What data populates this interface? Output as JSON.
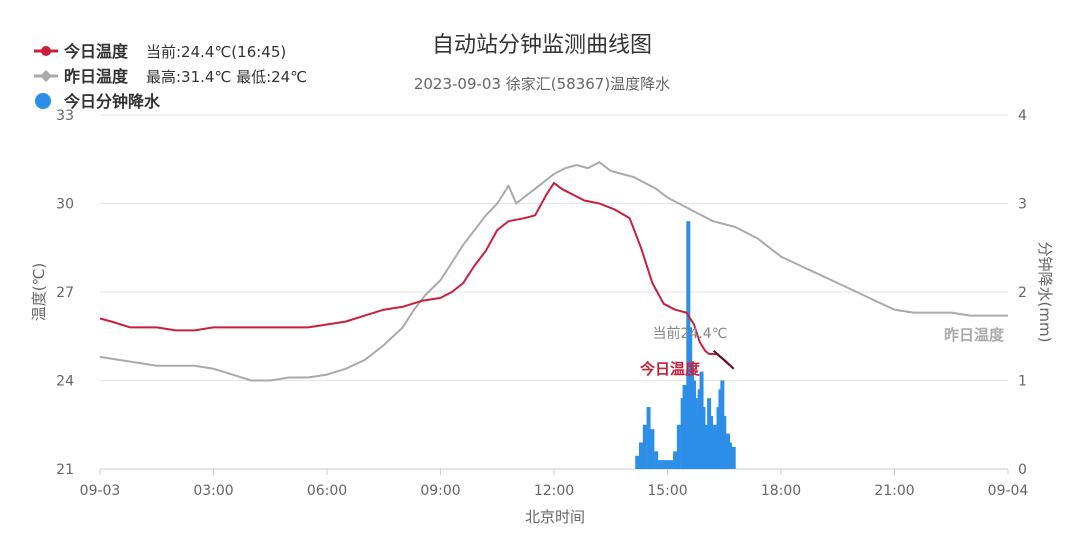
{
  "chart_data": {
    "type": "line",
    "title": "自动站分钟监测曲线图",
    "subtitle": "2023-09-03 徐家汇(58367)温度降水",
    "xlabel": "北京时间",
    "ylabel": "温度(℃)",
    "y2label": "分钟降水(mm)",
    "x_ticks": [
      "09-03",
      "03:00",
      "06:00",
      "09:00",
      "12:00",
      "15:00",
      "18:00",
      "21:00",
      "09-04"
    ],
    "x_tick_hours": [
      0,
      3,
      6,
      9,
      12,
      15,
      18,
      21,
      24
    ],
    "xlim_hours": [
      0,
      24
    ],
    "ylim": [
      21,
      33
    ],
    "y_ticks": [
      "21",
      "24",
      "27",
      "30",
      "33"
    ],
    "y2lim": [
      0,
      4
    ],
    "y2_ticks": [
      "0",
      "1",
      "2",
      "3",
      "4"
    ],
    "grid": true,
    "legend": {
      "position": "top-left",
      "entries": [
        {
          "label": "今日温度",
          "info": "当前:24.4℃(16:45)",
          "color": "#c8203a"
        },
        {
          "label": "昨日温度",
          "info": "最高:31.4℃ 最低:24℃",
          "color": "#aaaaaa"
        },
        {
          "label": "今日分钟降水",
          "info": "",
          "color": "#2d8ee8"
        }
      ]
    },
    "annotations": {
      "current": "当前24.4℃",
      "today_label": "今日温度",
      "yesterday_label": "昨日温度"
    },
    "series": [
      {
        "name": "今日温度",
        "axis": "left",
        "color": "#c8203a",
        "x": [
          0,
          0.3,
          0.8,
          1.5,
          2.0,
          2.5,
          3.0,
          4.0,
          5.0,
          5.5,
          6.0,
          6.5,
          7.0,
          7.5,
          8.0,
          8.5,
          9.0,
          9.3,
          9.6,
          9.9,
          10.2,
          10.5,
          10.8,
          11.2,
          11.5,
          11.8,
          12.0,
          12.2,
          12.5,
          12.8,
          13.2,
          13.6,
          14.0,
          14.3,
          14.6,
          14.9,
          15.2,
          15.5,
          15.7,
          15.85,
          16.0,
          16.1,
          16.3,
          16.5,
          16.75
        ],
        "y": [
          26.1,
          26.0,
          25.8,
          25.8,
          25.7,
          25.7,
          25.8,
          25.8,
          25.8,
          25.8,
          25.9,
          26.0,
          26.2,
          26.4,
          26.5,
          26.7,
          26.8,
          27.0,
          27.3,
          27.9,
          28.4,
          29.1,
          29.4,
          29.5,
          29.6,
          30.3,
          30.7,
          30.5,
          30.3,
          30.1,
          30.0,
          29.8,
          29.5,
          28.5,
          27.3,
          26.6,
          26.4,
          26.3,
          25.9,
          25.3,
          25.0,
          24.9,
          24.9,
          24.7,
          24.4
        ]
      },
      {
        "name": "昨日温度",
        "axis": "left",
        "color": "#aaaaaa",
        "x": [
          0,
          0.5,
          1.0,
          1.5,
          2.0,
          2.5,
          3.0,
          3.5,
          4.0,
          4.5,
          5.0,
          5.5,
          6.0,
          6.5,
          7.0,
          7.5,
          8.0,
          8.3,
          8.6,
          9.0,
          9.3,
          9.6,
          9.9,
          10.2,
          10.5,
          10.8,
          11.0,
          11.3,
          11.6,
          12.0,
          12.3,
          12.6,
          12.9,
          13.2,
          13.5,
          13.8,
          14.1,
          14.4,
          14.7,
          15.0,
          15.3,
          15.6,
          15.9,
          16.2,
          16.5,
          16.8,
          17.1,
          17.4,
          17.7,
          18.0,
          18.5,
          19.0,
          19.5,
          20.0,
          20.5,
          21.0,
          21.5,
          22.0,
          22.5,
          23.0,
          23.5,
          24.0
        ],
        "y": [
          24.8,
          24.7,
          24.6,
          24.5,
          24.5,
          24.5,
          24.4,
          24.2,
          24.0,
          24.0,
          24.1,
          24.1,
          24.2,
          24.4,
          24.7,
          25.2,
          25.8,
          26.4,
          26.9,
          27.4,
          28.0,
          28.6,
          29.1,
          29.6,
          30.0,
          30.6,
          30.0,
          30.3,
          30.6,
          31.0,
          31.2,
          31.3,
          31.2,
          31.4,
          31.1,
          31.0,
          30.9,
          30.7,
          30.5,
          30.2,
          30.0,
          29.8,
          29.6,
          29.4,
          29.3,
          29.2,
          29.0,
          28.8,
          28.5,
          28.2,
          27.9,
          27.6,
          27.3,
          27.0,
          26.7,
          26.4,
          26.3,
          26.3,
          26.3,
          26.2,
          26.2,
          26.2
        ]
      },
      {
        "name": "今日分钟降水",
        "axis": "right",
        "type": "bar",
        "color": "#2d8ee8",
        "x": [
          14.2,
          14.3,
          14.4,
          14.5,
          14.6,
          14.7,
          14.8,
          14.9,
          15.0,
          15.1,
          15.2,
          15.3,
          15.4,
          15.45,
          15.5,
          15.55,
          15.6,
          15.65,
          15.7,
          15.75,
          15.8,
          15.85,
          15.9,
          15.95,
          16.0,
          16.05,
          16.1,
          16.15,
          16.2,
          16.25,
          16.3,
          16.35,
          16.4,
          16.45,
          16.5,
          16.55,
          16.6,
          16.65,
          16.7,
          16.75
        ],
        "y": [
          0.15,
          0.3,
          0.5,
          0.7,
          0.45,
          0.2,
          0.1,
          0.1,
          0.1,
          0.1,
          0.2,
          0.5,
          0.8,
          0.95,
          0.7,
          2.8,
          1.6,
          1.2,
          1.0,
          0.8,
          0.6,
          0.9,
          1.1,
          0.7,
          0.5,
          0.4,
          0.8,
          0.6,
          0.3,
          0.5,
          0.4,
          0.7,
          0.9,
          1.0,
          0.6,
          0.3,
          0.4,
          0.3,
          0.2,
          0.25
        ]
      }
    ]
  }
}
